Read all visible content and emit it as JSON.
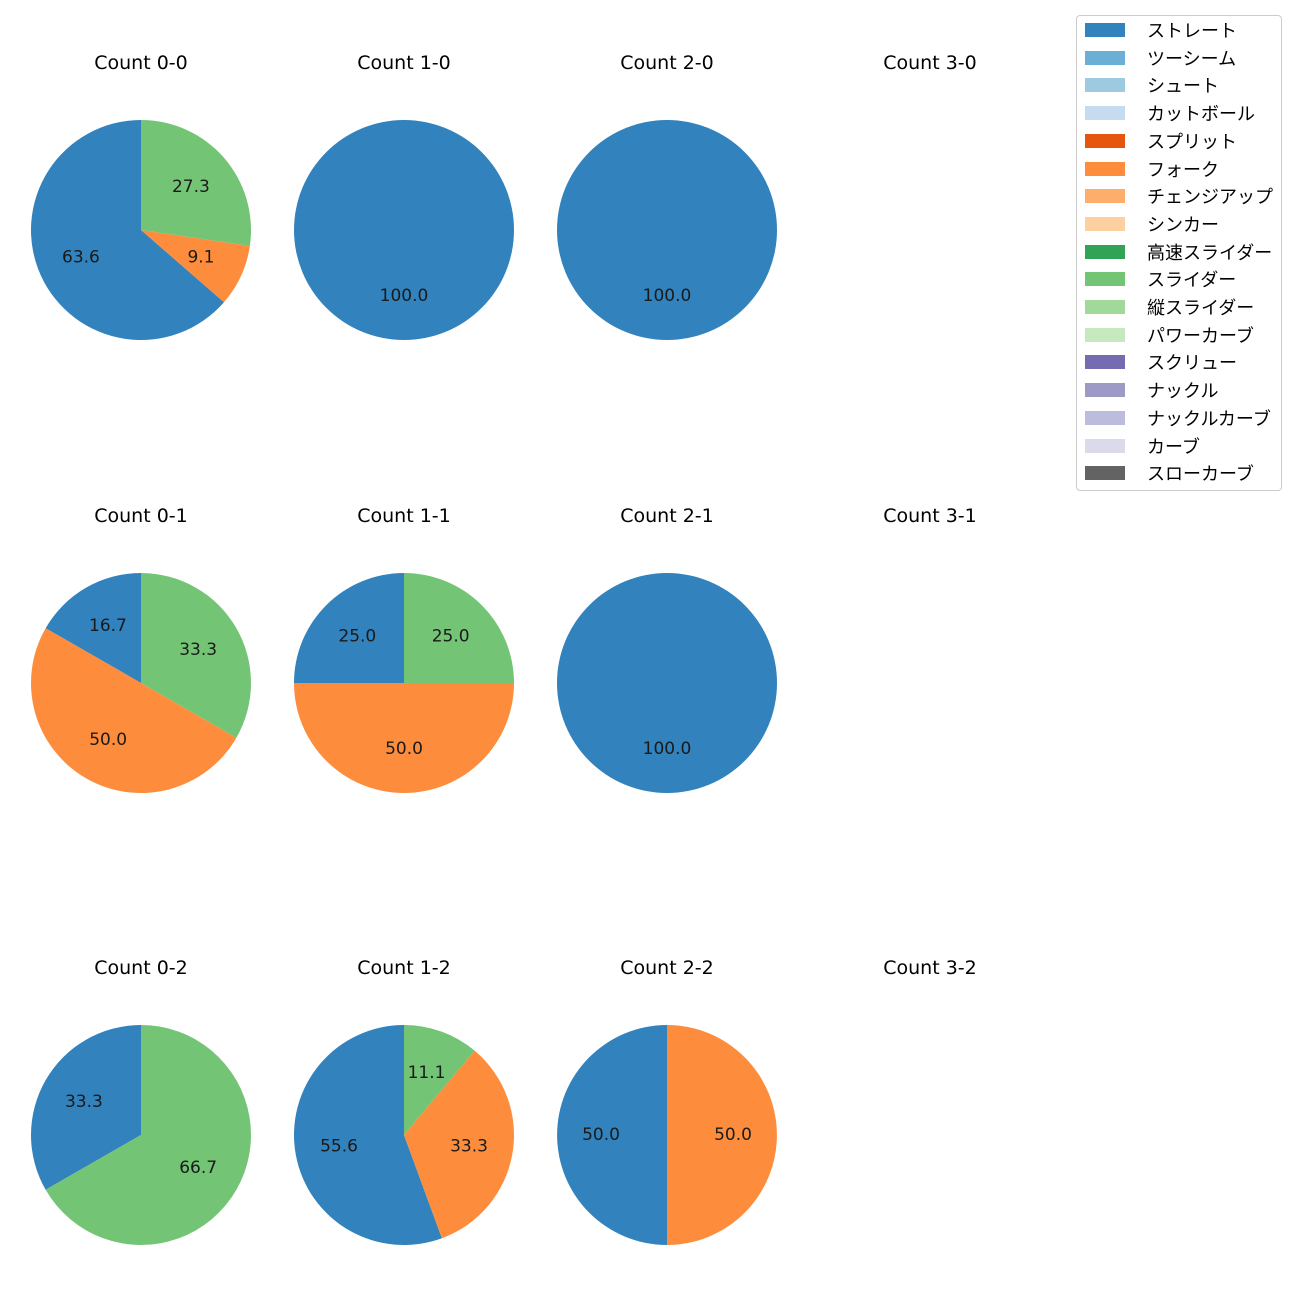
{
  "chart_data": {
    "type": "pie",
    "legend": {
      "placement": "top-right",
      "entries": [
        {
          "name": "ストレート",
          "color": "#3182bd"
        },
        {
          "name": "ツーシーム",
          "color": "#6baed6"
        },
        {
          "name": "シュート",
          "color": "#9ecae1"
        },
        {
          "name": "カットボール",
          "color": "#c6dbef"
        },
        {
          "name": "スプリット",
          "color": "#e6550d"
        },
        {
          "name": "フォーク",
          "color": "#fd8d3c"
        },
        {
          "name": "チェンジアップ",
          "color": "#fdae6b"
        },
        {
          "name": "シンカー",
          "color": "#fdd0a2"
        },
        {
          "name": "高速スライダー",
          "color": "#31a354"
        },
        {
          "name": "スライダー",
          "color": "#74c476"
        },
        {
          "name": "縦スライダー",
          "color": "#a1d99b"
        },
        {
          "name": "パワーカーブ",
          "color": "#c7e9c0"
        },
        {
          "name": "スクリュー",
          "color": "#756bb1"
        },
        {
          "name": "ナックル",
          "color": "#9e9ac8"
        },
        {
          "name": "ナックルカーブ",
          "color": "#bcbddc"
        },
        {
          "name": "カーブ",
          "color": "#dadaeb"
        },
        {
          "name": "スローカーブ",
          "color": "#636363"
        }
      ]
    },
    "panels": [
      {
        "title": "Count 0-0",
        "slices": [
          {
            "name": "ストレート",
            "value": 63.6,
            "label": "63.6"
          },
          {
            "name": "フォーク",
            "value": 9.1,
            "label": "9.1"
          },
          {
            "name": "スライダー",
            "value": 27.3,
            "label": "27.3"
          }
        ]
      },
      {
        "title": "Count 1-0",
        "slices": [
          {
            "name": "ストレート",
            "value": 100.0,
            "label": "100.0"
          }
        ]
      },
      {
        "title": "Count 2-0",
        "slices": [
          {
            "name": "ストレート",
            "value": 100.0,
            "label": "100.0"
          }
        ]
      },
      {
        "title": "Count 3-0",
        "slices": []
      },
      {
        "title": "Count 0-1",
        "slices": [
          {
            "name": "ストレート",
            "value": 16.7,
            "label": "16.7"
          },
          {
            "name": "フォーク",
            "value": 50.0,
            "label": "50.0"
          },
          {
            "name": "スライダー",
            "value": 33.3,
            "label": "33.3"
          }
        ]
      },
      {
        "title": "Count 1-1",
        "slices": [
          {
            "name": "ストレート",
            "value": 25.0,
            "label": "25.0"
          },
          {
            "name": "フォーク",
            "value": 50.0,
            "label": "50.0"
          },
          {
            "name": "スライダー",
            "value": 25.0,
            "label": "25.0"
          }
        ]
      },
      {
        "title": "Count 2-1",
        "slices": [
          {
            "name": "ストレート",
            "value": 100.0,
            "label": "100.0"
          }
        ]
      },
      {
        "title": "Count 3-1",
        "slices": []
      },
      {
        "title": "Count 0-2",
        "slices": [
          {
            "name": "ストレート",
            "value": 33.3,
            "label": "33.3"
          },
          {
            "name": "スライダー",
            "value": 66.7,
            "label": "66.7"
          }
        ]
      },
      {
        "title": "Count 1-2",
        "slices": [
          {
            "name": "ストレート",
            "value": 55.6,
            "label": "55.6"
          },
          {
            "name": "フォーク",
            "value": 33.3,
            "label": "33.3"
          },
          {
            "name": "スライダー",
            "value": 11.1,
            "label": "11.1"
          }
        ]
      },
      {
        "title": "Count 2-2",
        "slices": [
          {
            "name": "ストレート",
            "value": 50.0,
            "label": "50.0"
          },
          {
            "name": "フォーク",
            "value": 50.0,
            "label": "50.0"
          }
        ]
      },
      {
        "title": "Count 3-2",
        "slices": []
      }
    ]
  }
}
